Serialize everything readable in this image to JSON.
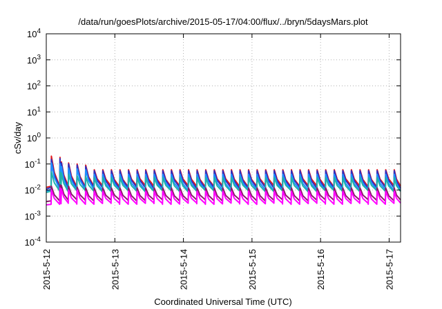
{
  "chart_data": {
    "type": "line",
    "title": "/data/run/goesPlots/archive/2015-05-17/04:00/flux/../bryn/5daysMars.plot",
    "xlabel": "Coordinated Universal Time (UTC)",
    "ylabel": "cSv/day",
    "yscale": "log",
    "ylim": [
      0.0001,
      10000
    ],
    "y_ticks": [
      {
        "value": 0.0001,
        "mant": "10",
        "exp": "-4"
      },
      {
        "value": 0.001,
        "mant": "10",
        "exp": "-3"
      },
      {
        "value": 0.01,
        "mant": "10",
        "exp": "-2"
      },
      {
        "value": 0.1,
        "mant": "10",
        "exp": "-1"
      },
      {
        "value": 1,
        "mant": "10",
        "exp": "0"
      },
      {
        "value": 10,
        "mant": "10",
        "exp": "1"
      },
      {
        "value": 100,
        "mant": "10",
        "exp": "2"
      },
      {
        "value": 1000,
        "mant": "10",
        "exp": "3"
      },
      {
        "value": 10000,
        "mant": "10",
        "exp": "4"
      }
    ],
    "xlim": [
      "2015-05-12 00:00",
      "2015-05-17 04:00"
    ],
    "x_ticks": [
      "2015-5-12",
      "2015-5-13",
      "2015-5-14",
      "2015-5-15",
      "2015-5-16",
      "2015-5-17"
    ],
    "grid": true,
    "legend": "none",
    "pattern": {
      "period_hours": 3,
      "first_peak_hours": 1.8,
      "extra_peaks_hours": [
        5.3
      ],
      "note": "sawtooth: sharp rise to peak, decay until next rise"
    },
    "series": [
      {
        "color": "#e41a1c",
        "peak": 0.06,
        "trough": 0.014,
        "first_peaks": [
          0.2,
          0.18,
          0.12,
          0.11,
          0.1,
          0.09
        ]
      },
      {
        "color": "#3030c0",
        "peak": 0.055,
        "trough": 0.012,
        "first_peaks": [
          0.15,
          0.16,
          0.11,
          0.1,
          0.09,
          0.08
        ]
      },
      {
        "color": "#1e90ff",
        "peak": 0.04,
        "trough": 0.01,
        "first_peaks": [
          0.11,
          0.1,
          0.08,
          0.07,
          0.065,
          0.06
        ]
      },
      {
        "color": "#20b2aa",
        "peak": 0.03,
        "trough": 0.009,
        "first_peaks": [
          0.05,
          0.05,
          0.045,
          0.04,
          0.035,
          0.033
        ]
      },
      {
        "color": "#8b1a6b",
        "peak": 0.012,
        "trough": 0.004,
        "first_peaks": [
          0.014,
          0.016,
          0.015,
          0.014,
          0.013,
          0.012
        ]
      },
      {
        "color": "#ff00ff",
        "peak": 0.009,
        "trough": 0.003,
        "first_peaks": [
          0.01,
          0.012,
          0.011,
          0.01,
          0.01,
          0.009
        ]
      }
    ]
  }
}
